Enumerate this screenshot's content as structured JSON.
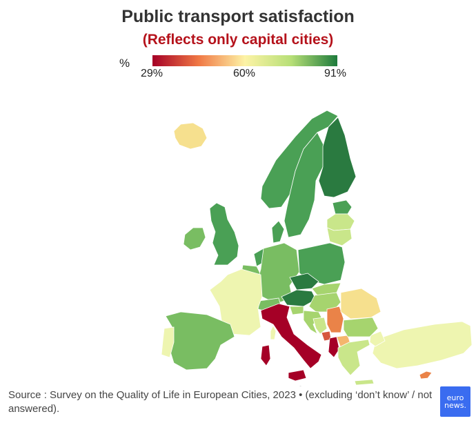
{
  "title": "Public transport satisfaction",
  "subtitle": "(Reflects only capital cities)",
  "subtitle_color": "#b5121b",
  "legend": {
    "unit": "%",
    "min_label": "29%",
    "mid_label": "60%",
    "max_label": "91%",
    "min": 29,
    "mid": 60,
    "max": 91,
    "colors": [
      "#a50026",
      "#f07845",
      "#fdf3a6",
      "#b7df77",
      "#1e7b3c"
    ]
  },
  "map_data": {
    "type": "choropleth",
    "scale": "diverging red-yellow-green",
    "colors": {
      "dark_green": "#2a7a40",
      "mid_green": "#4aa055",
      "green": "#79bd62",
      "light_green": "#a6d46e",
      "pale_green": "#c9e68a",
      "cream": "#eef5b0",
      "yellow": "#f6e08e",
      "light_orange": "#f4b66d",
      "orange": "#ea8348",
      "red_orange": "#d6573f",
      "dark_red": "#a50026",
      "no_data": "#dedede"
    },
    "regions": [
      {
        "id": "iceland",
        "fill": "yellow"
      },
      {
        "id": "ireland",
        "fill": "green"
      },
      {
        "id": "united-kingdom",
        "fill": "mid_green"
      },
      {
        "id": "norway",
        "fill": "mid_green"
      },
      {
        "id": "sweden",
        "fill": "mid_green"
      },
      {
        "id": "finland",
        "fill": "dark_green"
      },
      {
        "id": "estonia",
        "fill": "mid_green"
      },
      {
        "id": "latvia",
        "fill": "pale_green"
      },
      {
        "id": "lithuania",
        "fill": "pale_green"
      },
      {
        "id": "denmark",
        "fill": "mid_green"
      },
      {
        "id": "netherlands",
        "fill": "mid_green"
      },
      {
        "id": "belgium",
        "fill": "green"
      },
      {
        "id": "luxembourg",
        "fill": "green"
      },
      {
        "id": "germany",
        "fill": "green"
      },
      {
        "id": "poland",
        "fill": "mid_green"
      },
      {
        "id": "czechia",
        "fill": "dark_green"
      },
      {
        "id": "slovakia",
        "fill": "light_green"
      },
      {
        "id": "austria",
        "fill": "dark_green"
      },
      {
        "id": "hungary",
        "fill": "light_green"
      },
      {
        "id": "switzerland",
        "fill": "green"
      },
      {
        "id": "france",
        "fill": "cream"
      },
      {
        "id": "spain",
        "fill": "green"
      },
      {
        "id": "portugal",
        "fill": "cream"
      },
      {
        "id": "italy",
        "fill": "dark_red"
      },
      {
        "id": "sardinia",
        "fill": "dark_red"
      },
      {
        "id": "sicily",
        "fill": "dark_red"
      },
      {
        "id": "corsica",
        "fill": "cream"
      },
      {
        "id": "slovenia",
        "fill": "light_green"
      },
      {
        "id": "croatia",
        "fill": "light_green"
      },
      {
        "id": "bosnia",
        "fill": "pale_green"
      },
      {
        "id": "serbia",
        "fill": "orange"
      },
      {
        "id": "montenegro",
        "fill": "red_orange"
      },
      {
        "id": "albania",
        "fill": "dark_red"
      },
      {
        "id": "north-macedonia",
        "fill": "light_orange"
      },
      {
        "id": "romania",
        "fill": "yellow"
      },
      {
        "id": "bulgaria",
        "fill": "light_green"
      },
      {
        "id": "greece",
        "fill": "pale_green"
      },
      {
        "id": "turkey",
        "fill": "cream"
      },
      {
        "id": "cyprus",
        "fill": "orange"
      },
      {
        "id": "malta",
        "fill": "no_data"
      }
    ]
  },
  "source": "Source : Survey on the Quality of Life in European Cities, 2023 • (excluding ‘don’t know’ / not answered).",
  "logo": {
    "line1": "euro",
    "line2": "news.",
    "color": "#3a6cf0"
  }
}
